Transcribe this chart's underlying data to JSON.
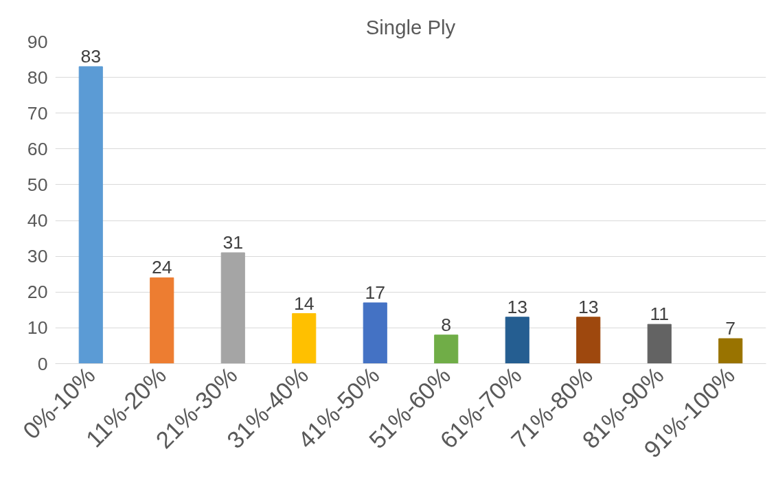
{
  "chart_data": {
    "type": "bar",
    "title": "Single Ply",
    "categories": [
      "0%-10%",
      "11%-20%",
      "21%-30%",
      "31%-40%",
      "41%-50%",
      "51%-60%",
      "61%-70%",
      "71%-80%",
      "81%-90%",
      "91%-100%"
    ],
    "values": [
      83,
      24,
      31,
      14,
      17,
      8,
      13,
      13,
      11,
      7
    ],
    "colors": [
      "#5b9bd5",
      "#ed7d31",
      "#a5a5a5",
      "#ffc000",
      "#4472c4",
      "#70ad47",
      "#255e91",
      "#9e480e",
      "#636363",
      "#997300"
    ],
    "ylim": [
      0,
      90
    ],
    "yticks": [
      0,
      10,
      20,
      30,
      40,
      50,
      60,
      70,
      80,
      90
    ],
    "grid": "y",
    "data_labels": true
  }
}
